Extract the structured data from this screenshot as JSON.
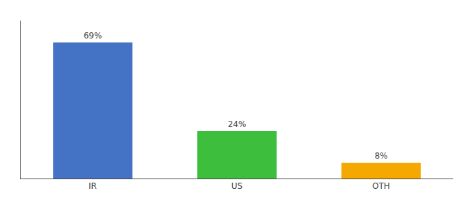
{
  "chart_data": {
    "type": "bar",
    "categories": [
      "IR",
      "US",
      "OTH"
    ],
    "values": [
      69,
      24,
      8
    ],
    "value_labels": [
      "69%",
      "24%",
      "8%"
    ],
    "colors": [
      "#4472c4",
      "#3dbf3d",
      "#f5a800"
    ],
    "ylim": [
      0,
      80
    ],
    "grid": false,
    "data_labels": true,
    "tick_labels": "x"
  }
}
